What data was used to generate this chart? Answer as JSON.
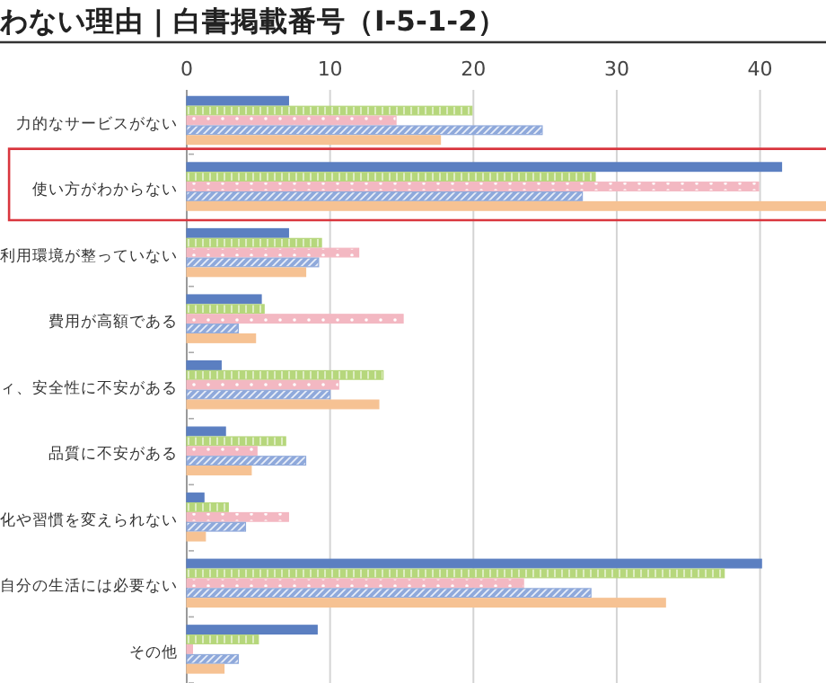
{
  "chart_data": {
    "type": "bar",
    "orientation": "horizontal",
    "title": "わない理由 | 白書掲載番号（Ⅰ-5-1-2）",
    "categories": [
      "力的なサービスがない",
      "使い方がわからない",
      "利用環境が整っていない",
      "費用が高額である",
      "ィ、安全性に不安がある",
      "品質に不安がある",
      "化や習慣を変えられない",
      "自分の生活には必要ない",
      "その他"
    ],
    "series": [
      {
        "color": "#5b7fc1",
        "values": [
          7.1,
          41.5,
          7.1,
          5.2,
          2.4,
          2.7,
          1.2,
          40.1,
          9.1
        ]
      },
      {
        "color": "#b6d77c",
        "values": [
          19.9,
          28.5,
          9.4,
          5.4,
          13.7,
          6.9,
          2.9,
          37.5,
          5.0
        ]
      },
      {
        "color": "#f3b8c2",
        "values": [
          14.6,
          39.9,
          12.0,
          15.1,
          10.6,
          4.9,
          7.1,
          23.5,
          0.4
        ]
      },
      {
        "color": "#8fa9db",
        "values": [
          24.8,
          27.6,
          9.2,
          3.6,
          10.0,
          8.3,
          4.1,
          28.2,
          3.6
        ]
      },
      {
        "color": "#f6c293",
        "values": [
          17.7,
          44.6,
          8.3,
          4.8,
          13.4,
          4.5,
          1.3,
          33.4,
          2.6
        ]
      }
    ],
    "xlim": [
      0,
      44.6
    ],
    "xticks": [
      0,
      10,
      20,
      30,
      40
    ],
    "grid": "x"
  }
}
